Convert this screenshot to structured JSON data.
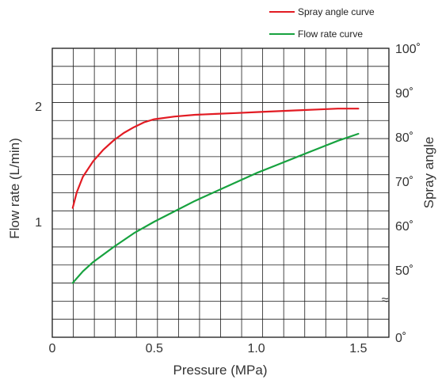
{
  "colors": {
    "spray": "#e21b23",
    "flow": "#17a23f",
    "grid": "#1a1a1a",
    "text": "#333333"
  },
  "chart_data": {
    "type": "line",
    "title": "",
    "xlabel": "Pressure (MPa)",
    "ylabel_left": "Flow rate (L/min)",
    "ylabel_right": "Spray angle",
    "xlim": [
      0,
      1.65
    ],
    "x_ticks": [
      {
        "value": 0,
        "label": "0"
      },
      {
        "value": 0.5,
        "label": "0.5"
      },
      {
        "value": 1.0,
        "label": "1.0"
      },
      {
        "value": 1.5,
        "label": "1.5"
      }
    ],
    "y_left_lim": [
      0,
      2.5
    ],
    "y_left_ticks": [
      {
        "value": 1,
        "label": "1"
      },
      {
        "value": 2,
        "label": "2"
      }
    ],
    "y_right_ticks": [
      {
        "value": 0,
        "label": "0˚"
      },
      {
        "value": 50,
        "label": "50˚"
      },
      {
        "value": 60,
        "label": "60˚"
      },
      {
        "value": 70,
        "label": "70˚"
      },
      {
        "value": 80,
        "label": "80˚"
      },
      {
        "value": 90,
        "label": "90˚"
      },
      {
        "value": 100,
        "label": "100˚"
      }
    ],
    "y_right_break": "≈",
    "grid": true,
    "legend_position": "top-right",
    "series": [
      {
        "name": "Spray angle curve",
        "axis": "right",
        "color": "#e21b23",
        "x": [
          0.1,
          0.12,
          0.15,
          0.2,
          0.25,
          0.3,
          0.35,
          0.4,
          0.45,
          0.5,
          0.6,
          0.7,
          0.8,
          0.9,
          1.0,
          1.1,
          1.2,
          1.3,
          1.4,
          1.5
        ],
        "y": [
          64,
          67.5,
          71,
          74.5,
          77.1,
          79.2,
          80.9,
          82.2,
          83.3,
          84.0,
          84.6,
          85.0,
          85.2,
          85.4,
          85.6,
          85.8,
          86.0,
          86.2,
          86.4,
          86.4
        ]
      },
      {
        "name": "Flow rate curve",
        "axis": "left",
        "color": "#17a23f",
        "x": [
          0.1,
          0.15,
          0.2,
          0.3,
          0.4,
          0.5,
          0.6,
          0.7,
          0.8,
          0.9,
          1.0,
          1.1,
          1.2,
          1.3,
          1.4,
          1.5
        ],
        "y": [
          0.47,
          0.57,
          0.65,
          0.78,
          0.9,
          1.0,
          1.09,
          1.18,
          1.26,
          1.34,
          1.42,
          1.49,
          1.56,
          1.63,
          1.7,
          1.76
        ]
      }
    ]
  }
}
